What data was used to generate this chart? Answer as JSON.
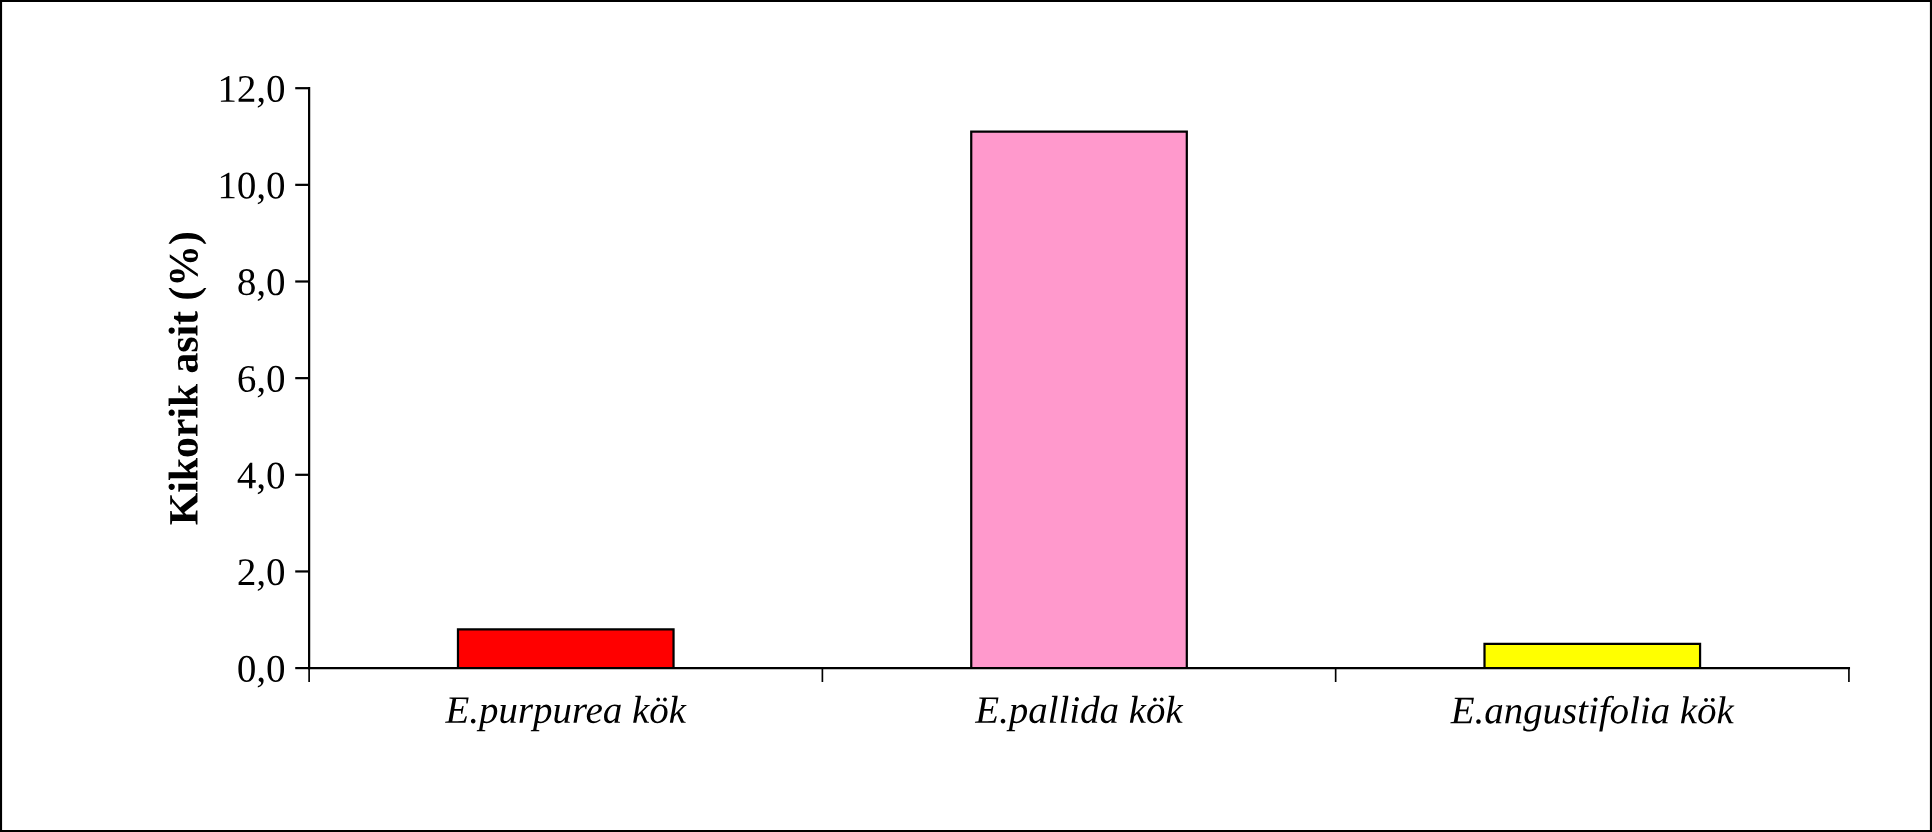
{
  "chart_data": {
    "type": "bar",
    "ylabel": "Kikorik asit (%)",
    "categories": [
      "E.purpurea kök",
      "E.pallida kök",
      "E.angustifolia kök"
    ],
    "values": [
      0.8,
      11.1,
      0.5
    ],
    "colors": [
      "#ff0000",
      "#ff99cc",
      "#ffff00"
    ],
    "ylim": [
      0,
      12
    ],
    "yticks": [
      {
        "value": 0,
        "label": "0,0"
      },
      {
        "value": 2,
        "label": "2,0"
      },
      {
        "value": 4,
        "label": "4,0"
      },
      {
        "value": 6,
        "label": "6,0"
      },
      {
        "value": 8,
        "label": "8,0"
      },
      {
        "value": 10,
        "label": "10,0"
      },
      {
        "value": 12,
        "label": "12,0"
      }
    ],
    "grid": false,
    "legend": false
  }
}
